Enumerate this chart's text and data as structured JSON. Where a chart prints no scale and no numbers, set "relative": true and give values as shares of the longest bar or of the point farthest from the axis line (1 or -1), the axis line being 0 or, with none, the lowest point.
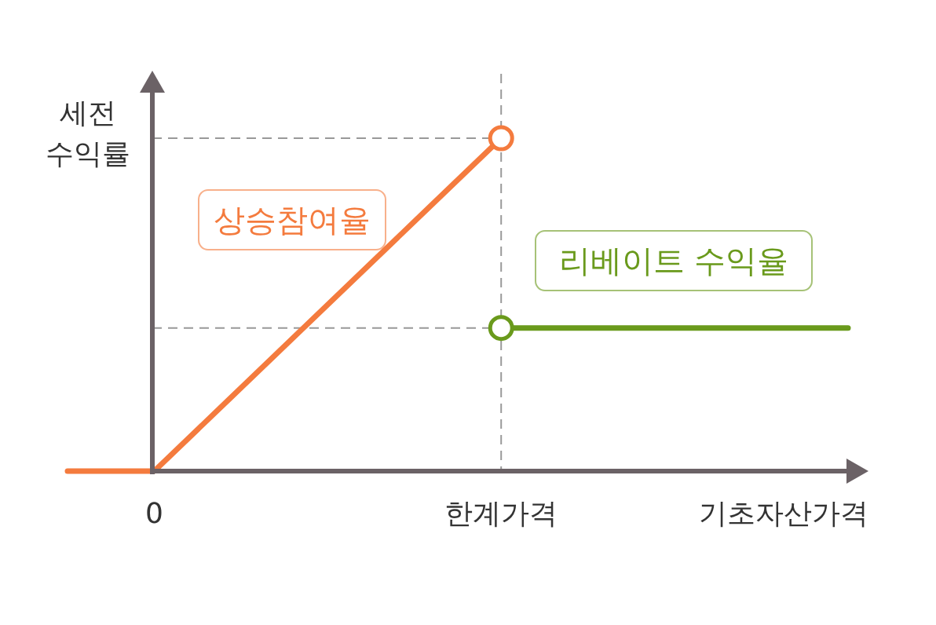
{
  "chart_data": {
    "type": "line",
    "relative": true,
    "ylabel": "세전\n수익률",
    "xlabel": "기초자산가격",
    "categories": [
      null,
      "0",
      null,
      null,
      null,
      "한계가격",
      null,
      null,
      null,
      null
    ],
    "series": [
      {
        "name": "상승참여율",
        "color": "#f47b3e",
        "values": [
          0,
          0,
          0.25,
          0.5,
          0.75,
          1,
          null,
          null,
          null,
          null
        ]
      },
      {
        "name": "리베이트 수익율",
        "color": "#6a9a1c",
        "values": [
          null,
          null,
          null,
          null,
          null,
          0.43,
          0.43,
          0.43,
          0.43,
          0.43
        ]
      },
      {
        "type": "scatter",
        "marker": "circle",
        "color": "#f47b3e",
        "values": [
          null,
          null,
          null,
          null,
          null,
          1,
          null,
          null,
          null,
          null
        ]
      },
      {
        "type": "scatter",
        "marker": "circle",
        "color": "#6a9a1c",
        "values": [
          null,
          null,
          null,
          null,
          null,
          0.43,
          null,
          null,
          null,
          null
        ]
      }
    ],
    "ref_lines": [
      {
        "axis": "x",
        "value": "한계가격",
        "color": "#999999",
        "line_style": "dashed"
      },
      {
        "axis": "y",
        "value": 1,
        "color": "#999999",
        "line_style": "dashed"
      },
      {
        "axis": "y",
        "value": 0.43,
        "color": "#999999",
        "line_style": "dashed"
      }
    ],
    "line_style": "solid",
    "legend": false
  }
}
